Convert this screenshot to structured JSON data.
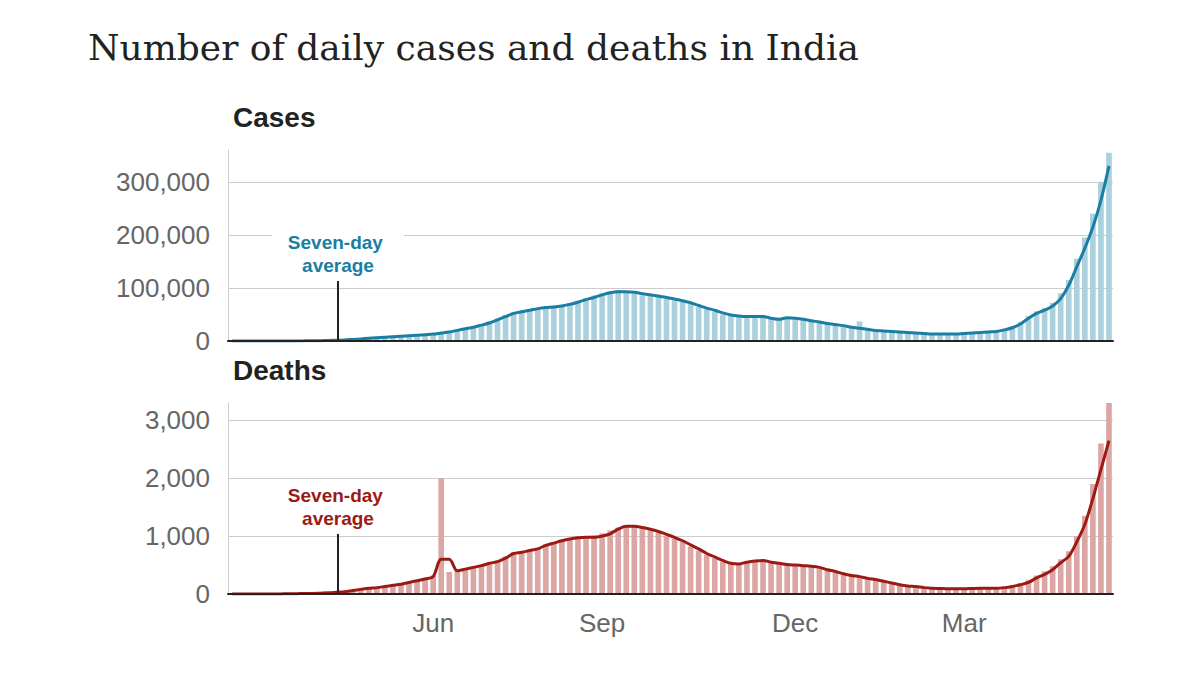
{
  "title": "Number of daily cases and deaths in India",
  "chart_data": [
    {
      "type": "bar",
      "title": "Cases",
      "categories": [
        null,
        null,
        null,
        null,
        null,
        null,
        null,
        null,
        null,
        null,
        null,
        null,
        null,
        null,
        null,
        null,
        null,
        null,
        null,
        null,
        null,
        null,
        null,
        null,
        null,
        "Jun",
        null,
        null,
        null,
        null,
        null,
        null,
        null,
        null,
        null,
        null,
        null,
        null,
        null,
        null,
        null,
        null,
        null,
        null,
        null,
        null,
        "Sep",
        null,
        null,
        null,
        null,
        null,
        null,
        null,
        null,
        null,
        null,
        null,
        null,
        null,
        null,
        null,
        null,
        null,
        null,
        null,
        null,
        null,
        null,
        null,
        "Dec",
        null,
        null,
        null,
        null,
        null,
        null,
        null,
        null,
        null,
        null,
        null,
        null,
        null,
        null,
        null,
        null,
        null,
        null,
        null,
        null,
        "Mar",
        null,
        null,
        null,
        null,
        null,
        null,
        null,
        null,
        null,
        null,
        null,
        null,
        null,
        null,
        null,
        null,
        null,
        null
      ],
      "series": [
        {
          "type": "bar",
          "color": "#a9d0dc",
          "values": [
            0,
            0,
            0,
            0,
            20,
            30,
            60,
            120,
            180,
            350,
            550,
            800,
            1100,
            1600,
            2300,
            3200,
            4200,
            5300,
            6200,
            7400,
            8500,
            9500,
            10500,
            11800,
            12800,
            14000,
            16000,
            18500,
            21000,
            24500,
            28000,
            32000,
            37000,
            43000,
            49000,
            54000,
            57000,
            60000,
            62000,
            64000,
            66000,
            68000,
            72000,
            76000,
            81000,
            86000,
            90000,
            94000,
            96000,
            91000,
            90000,
            86000,
            88000,
            83000,
            80000,
            77000,
            74000,
            70000,
            64000,
            60000,
            56000,
            50000,
            47000,
            46000,
            45000,
            47000,
            44000,
            42000,
            40000,
            45000,
            41000,
            40000,
            37000,
            35000,
            32000,
            30000,
            28000,
            25000,
            37000,
            21000,
            19500,
            18500,
            17000,
            16500,
            15500,
            14500,
            13500,
            12800,
            12500,
            13200,
            13500,
            14500,
            15500,
            16500,
            17500,
            19000,
            23000,
            28000,
            36000,
            47000,
            56000,
            62000,
            72000,
            90000,
            115000,
            155000,
            195000,
            240000,
            300000,
            355000
          ]
        },
        {
          "type": "line",
          "name": "Seven-day average",
          "color": "#1a7ea3",
          "values": [
            0,
            0,
            0,
            0,
            10,
            20,
            50,
            100,
            150,
            300,
            500,
            700,
            1000,
            1500,
            2000,
            3000,
            4000,
            5000,
            6000,
            7000,
            8000,
            9000,
            10000,
            11000,
            12000,
            13000,
            15000,
            17000,
            20000,
            23000,
            26000,
            30000,
            34000,
            40000,
            46000,
            52000,
            55000,
            58000,
            61000,
            63000,
            64000,
            66000,
            69000,
            73000,
            78000,
            82000,
            87000,
            91000,
            93000,
            93000,
            92000,
            89000,
            87000,
            85000,
            82000,
            79000,
            76000,
            72000,
            67000,
            62000,
            58000,
            53000,
            49000,
            47000,
            46000,
            46000,
            46000,
            43000,
            41000,
            44000,
            43000,
            41000,
            38000,
            36000,
            33000,
            31000,
            29000,
            26000,
            24000,
            22000,
            20000,
            19000,
            18000,
            17000,
            16000,
            15000,
            14000,
            13000,
            13000,
            13000,
            13000,
            14000,
            15000,
            16000,
            17000,
            18000,
            21000,
            25000,
            32000,
            43000,
            52000,
            58000,
            66000,
            80000,
            105000,
            140000,
            175000,
            215000,
            265000,
            330000
          ]
        }
      ],
      "ylim": [
        0,
        360000
      ],
      "yticks": [
        0,
        {
          "value": 100000,
          "label": "100,000"
        },
        {
          "value": 200000,
          "label": "200,000"
        },
        {
          "value": 300000,
          "label": "300,000"
        }
      ],
      "grid": true,
      "tick_labels": "y"
    },
    {
      "type": "bar",
      "title": "Deaths",
      "categories": [
        null,
        null,
        null,
        null,
        null,
        null,
        null,
        null,
        null,
        null,
        null,
        null,
        null,
        null,
        null,
        null,
        null,
        null,
        null,
        null,
        null,
        null,
        null,
        null,
        null,
        "Jun",
        null,
        null,
        null,
        null,
        null,
        null,
        null,
        null,
        null,
        null,
        null,
        null,
        null,
        null,
        null,
        null,
        null,
        null,
        null,
        null,
        "Sep",
        null,
        null,
        null,
        null,
        null,
        null,
        null,
        null,
        null,
        null,
        null,
        null,
        null,
        null,
        null,
        null,
        null,
        null,
        null,
        null,
        null,
        null,
        null,
        "Dec",
        null,
        null,
        null,
        null,
        null,
        null,
        null,
        null,
        null,
        null,
        null,
        null,
        null,
        null,
        null,
        null,
        null,
        null,
        null,
        null,
        "Mar",
        null,
        null,
        null,
        null,
        null,
        null,
        null,
        null,
        null,
        null,
        null,
        null,
        null,
        null,
        null,
        null,
        null,
        null
      ],
      "series": [
        {
          "type": "bar",
          "color": "#dca6a4",
          "values": [
            0,
            0,
            0,
            0,
            0,
            2,
            3,
            4,
            6,
            10,
            12,
            18,
            25,
            35,
            50,
            70,
            90,
            110,
            120,
            140,
            160,
            180,
            210,
            240,
            280,
            320,
            2000,
            380,
            410,
            440,
            470,
            500,
            540,
            580,
            650,
            720,
            740,
            770,
            800,
            860,
            900,
            940,
            960,
            990,
            1000,
            1010,
            1050,
            1100,
            1150,
            1180,
            1160,
            1140,
            1100,
            1060,
            1010,
            950,
            900,
            820,
            750,
            680,
            620,
            560,
            520,
            530,
            560,
            580,
            570,
            540,
            520,
            500,
            490,
            480,
            470,
            440,
            410,
            380,
            340,
            310,
            290,
            260,
            240,
            210,
            180,
            155,
            135,
            120,
            105,
            98,
            92,
            88,
            88,
            92,
            98,
            102,
            104,
            108,
            125,
            150,
            190,
            240,
            320,
            390,
            480,
            600,
            740,
            1000,
            1350,
            1900,
            2600,
            3300
          ]
        },
        {
          "type": "line",
          "name": "Seven-day average",
          "color": "#9b1b14",
          "values": [
            0,
            0,
            0,
            0,
            0,
            1,
            2,
            3,
            5,
            8,
            10,
            15,
            20,
            30,
            40,
            60,
            80,
            100,
            110,
            130,
            150,
            170,
            200,
            230,
            260,
            300,
            600,
            600,
            400,
            430,
            460,
            490,
            530,
            560,
            620,
            700,
            720,
            750,
            780,
            840,
            880,
            920,
            950,
            970,
            980,
            980,
            1000,
            1040,
            1120,
            1170,
            1170,
            1150,
            1120,
            1080,
            1030,
            980,
            920,
            850,
            780,
            700,
            640,
            580,
            530,
            520,
            550,
            570,
            580,
            550,
            530,
            510,
            500,
            490,
            480,
            460,
            420,
            390,
            350,
            320,
            300,
            270,
            250,
            220,
            190,
            160,
            140,
            130,
            110,
            100,
            95,
            90,
            90,
            90,
            95,
            100,
            100,
            100,
            110,
            130,
            160,
            200,
            280,
            340,
            420,
            540,
            650,
            900,
            1200,
            1650,
            2150,
            2650
          ]
        }
      ],
      "ylim": [
        0,
        3300
      ],
      "yticks": [
        0,
        {
          "value": 1000,
          "label": "1,000"
        },
        {
          "value": 2000,
          "label": "2,000"
        },
        {
          "value": 3000,
          "label": "3,000"
        }
      ],
      "grid": true
    }
  ]
}
